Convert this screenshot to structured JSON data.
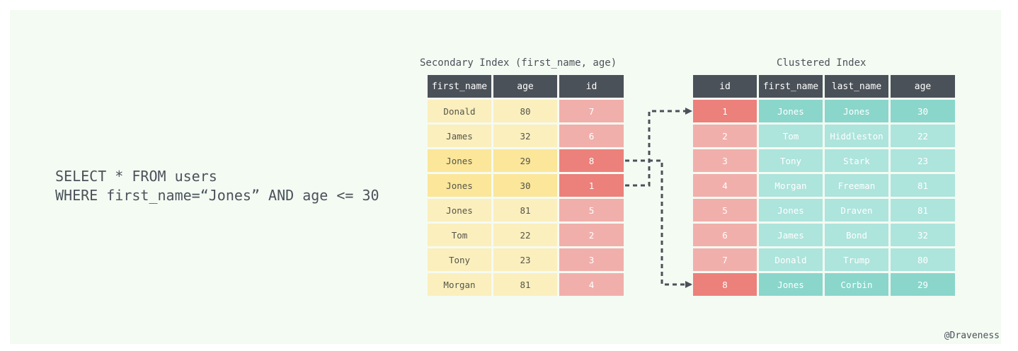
{
  "query": {
    "line1": "SELECT * FROM users",
    "line2": "WHERE first_name=“Jones” AND age <= 30"
  },
  "secondary": {
    "title": "Secondary Index (first_name, age)",
    "headers": [
      "first_name",
      "age",
      "id"
    ],
    "rows": [
      [
        "Donald",
        "80",
        "7"
      ],
      [
        "James",
        "32",
        "6"
      ],
      [
        "Jones",
        "29",
        "8"
      ],
      [
        "Jones",
        "30",
        "1"
      ],
      [
        "Jones",
        "81",
        "5"
      ],
      [
        "Tom",
        "22",
        "2"
      ],
      [
        "Tony",
        "23",
        "3"
      ],
      [
        "Morgan",
        "81",
        "4"
      ]
    ],
    "highlighted_rows": [
      2,
      3
    ]
  },
  "clustered": {
    "title": "Clustered Index",
    "headers": [
      "id",
      "first_name",
      "last_name",
      "age"
    ],
    "rows": [
      [
        "1",
        "Jones",
        "Jones",
        "30"
      ],
      [
        "2",
        "Tom",
        "Hiddleston",
        "22"
      ],
      [
        "3",
        "Tony",
        "Stark",
        "23"
      ],
      [
        "4",
        "Morgan",
        "Freeman",
        "81"
      ],
      [
        "5",
        "Jones",
        "Draven",
        "81"
      ],
      [
        "6",
        "James",
        "Bond",
        "32"
      ],
      [
        "7",
        "Donald",
        "Trump",
        "80"
      ],
      [
        "8",
        "Jones",
        "Corbin",
        "29"
      ]
    ],
    "highlighted_rows": [
      0,
      7
    ]
  },
  "links": [
    {
      "from_row": 2,
      "to_row": 7
    },
    {
      "from_row": 3,
      "to_row": 0
    }
  ],
  "credit": "@Draveness",
  "colors": {
    "header": "#4a5158",
    "yellow": "#fbefbe",
    "yellow_highlight": "#fbe69a",
    "red": "#f1afab",
    "red_highlight": "#ec807a",
    "teal": "#ade4dc",
    "teal_highlight": "#8ad6cb",
    "background": "#f4fbf3"
  }
}
